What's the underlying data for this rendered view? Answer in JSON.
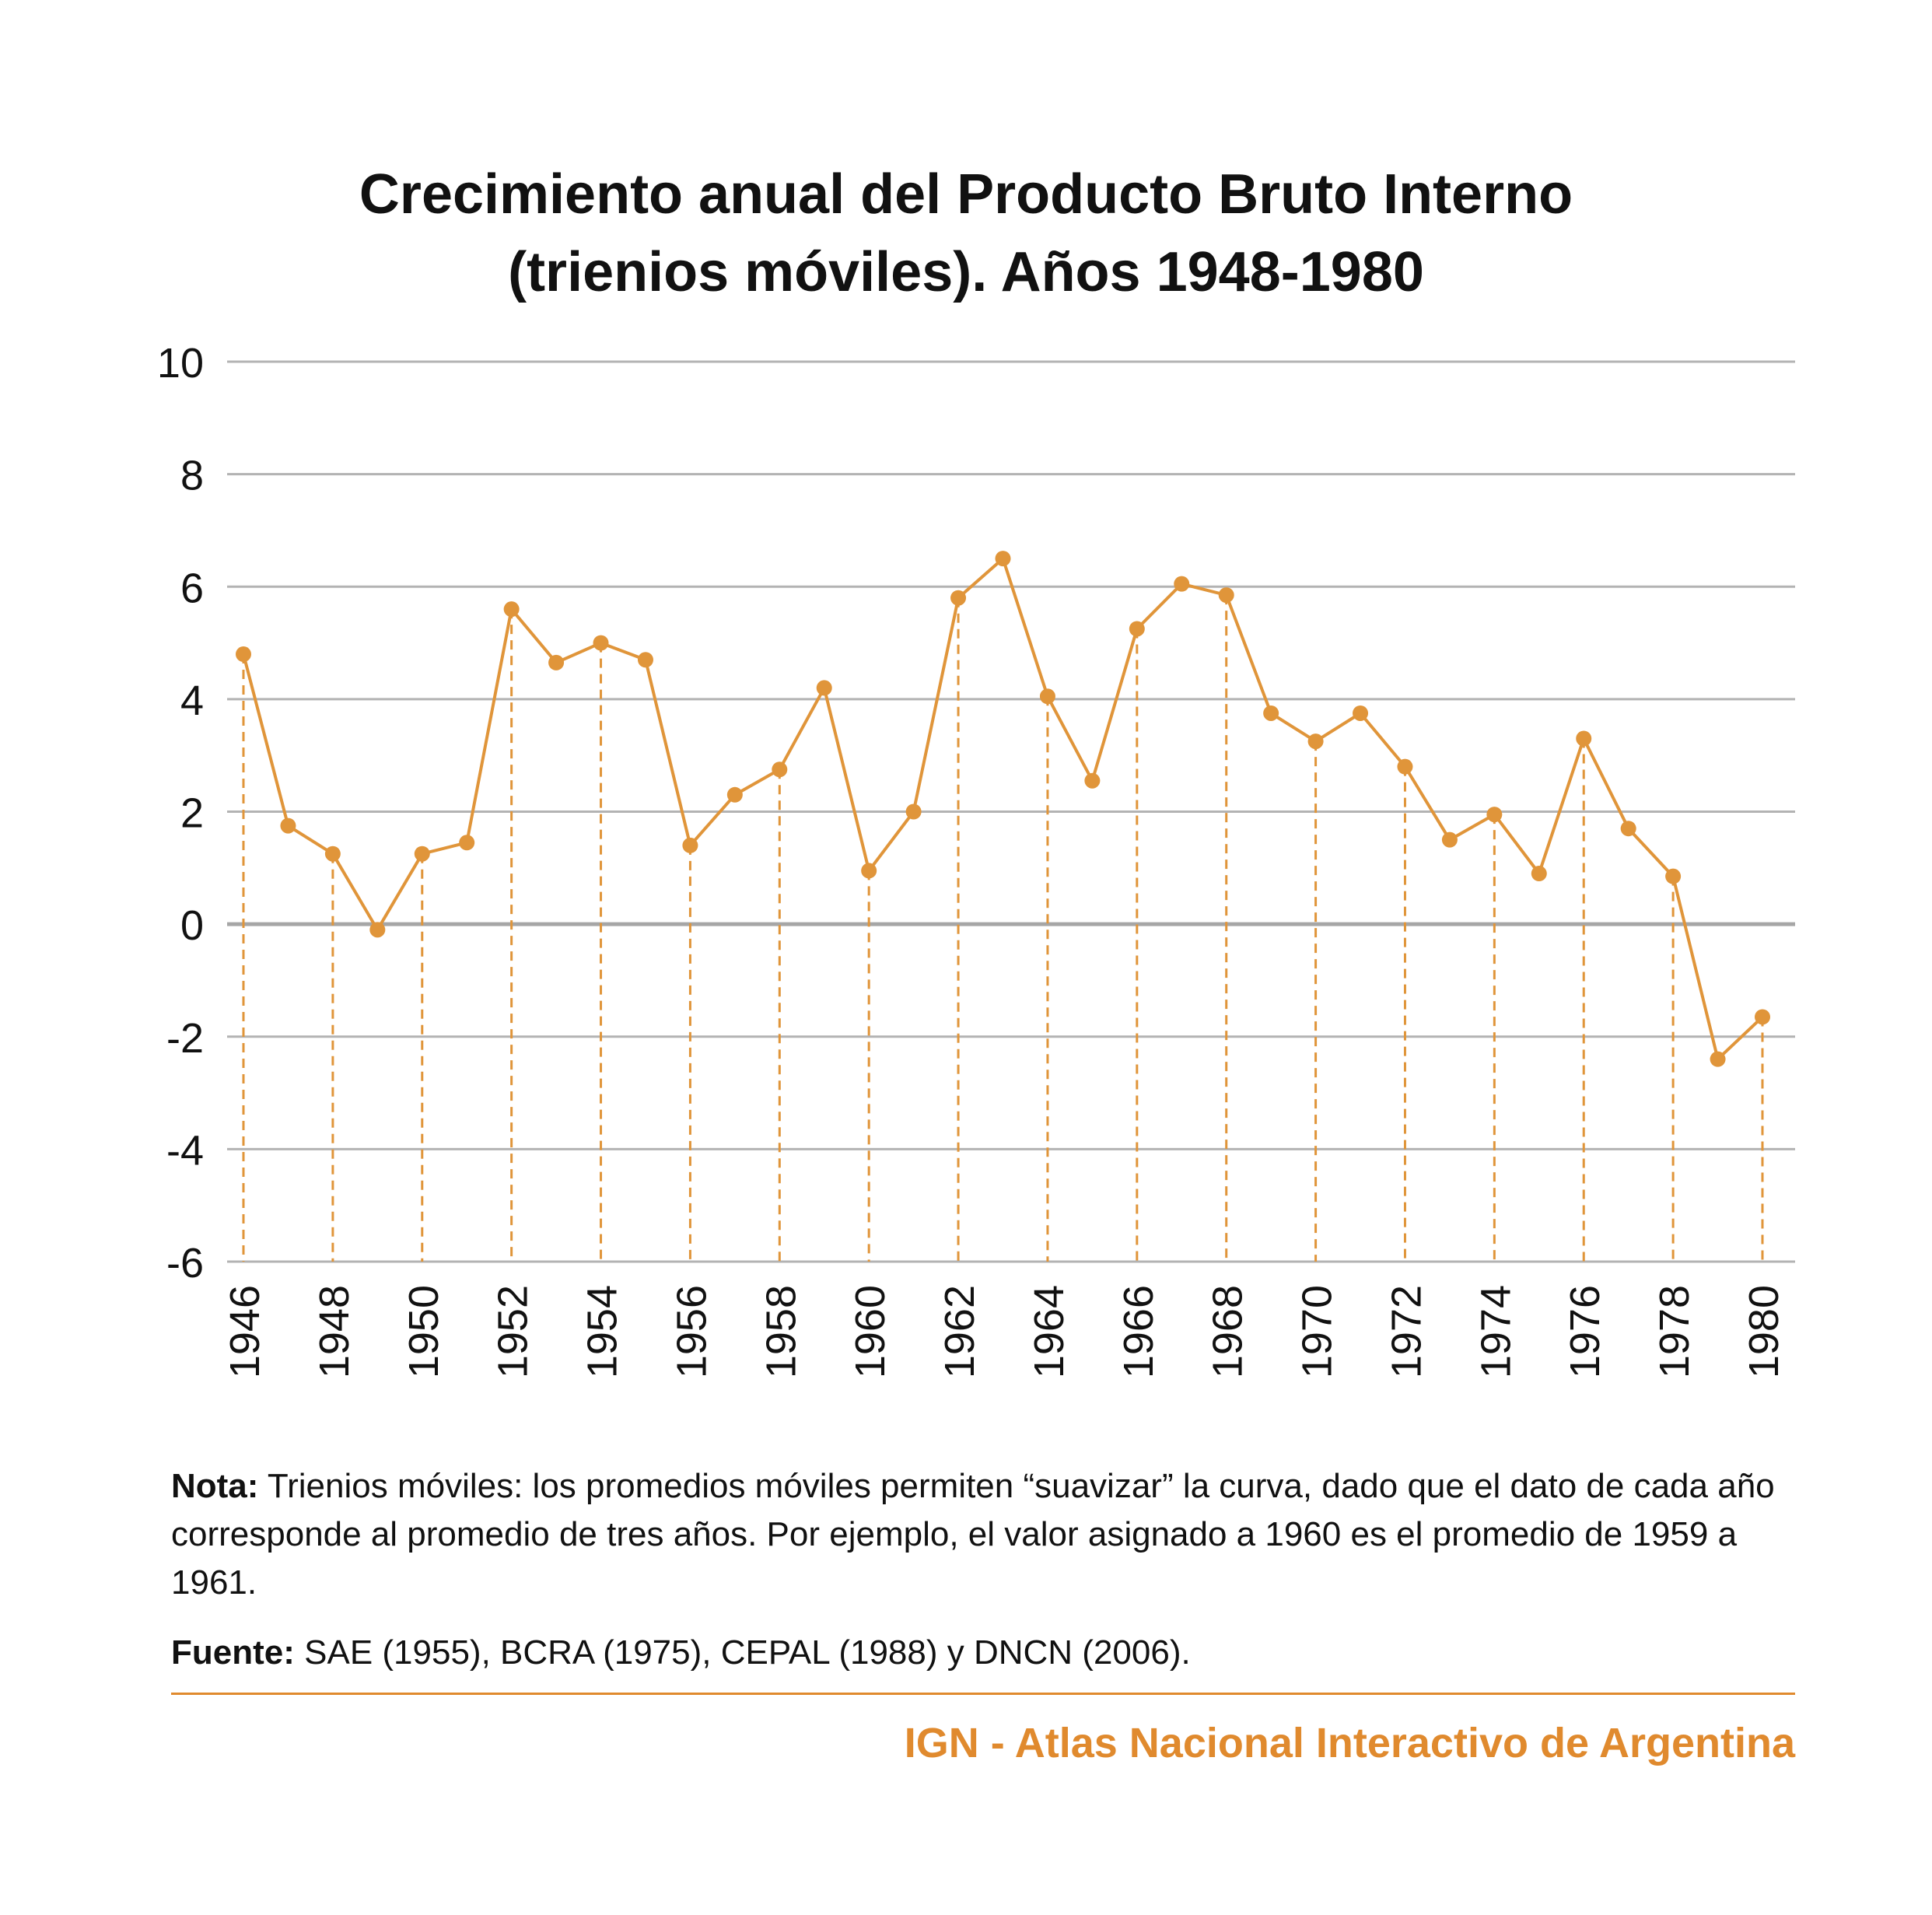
{
  "title_line1": "Crecimiento anual del Producto Bruto Interno",
  "title_line2": "(trienios móviles). Años 1948-1980",
  "note_label": "Nota:",
  "note_text": "Trienios móviles: los promedios móviles permiten “suavizar” la curva, dado que el dato de cada año corresponde al promedio de tres años. Por ejemplo, el valor asignado a 1960 es el promedio de 1959 a 1961.",
  "source_label": "Fuente:",
  "source_text": "SAE (1955), BCRA (1975), CEPAL (1988) y DNCN (2006).",
  "credit": "IGN - Atlas Nacional Interactivo de Argentina",
  "colors": {
    "series": "#e0953a",
    "grid": "#b3b3b3",
    "zero_line": "#a6a6a6",
    "credit": "#e08a2e"
  },
  "chart_data": {
    "type": "line",
    "title": "Crecimiento anual del Producto Bruto Interno (trienios móviles). Años 1948-1980",
    "xlabel": "",
    "ylabel": "",
    "ylim": [
      -6,
      10
    ],
    "yticks": [
      10,
      8,
      6,
      4,
      2,
      0,
      -2,
      -4,
      -6
    ],
    "xticks": [
      1946,
      1948,
      1950,
      1952,
      1954,
      1956,
      1958,
      1960,
      1962,
      1964,
      1966,
      1968,
      1970,
      1972,
      1974,
      1976,
      1978,
      1980
    ],
    "grid": true,
    "dashed_drop_lines_at_labeled_years": true,
    "x": [
      1946,
      1947,
      1948,
      1949,
      1950,
      1951,
      1952,
      1953,
      1954,
      1955,
      1956,
      1957,
      1958,
      1959,
      1960,
      1961,
      1962,
      1963,
      1964,
      1965,
      1966,
      1967,
      1968,
      1969,
      1970,
      1971,
      1972,
      1973,
      1974,
      1975,
      1976,
      1977,
      1978,
      1979,
      1980
    ],
    "series": [
      {
        "values": [
          4.8,
          1.75,
          1.25,
          -0.1,
          1.25,
          1.45,
          5.6,
          4.65,
          5.0,
          4.7,
          1.4,
          2.3,
          2.75,
          4.2,
          0.95,
          2.0,
          5.8,
          6.5,
          4.05,
          2.55,
          5.25,
          6.05,
          5.85,
          3.75,
          3.25,
          3.75,
          2.8,
          1.5,
          1.95,
          0.9,
          3.3,
          1.7,
          0.85,
          -2.4,
          -1.65
        ]
      }
    ]
  }
}
